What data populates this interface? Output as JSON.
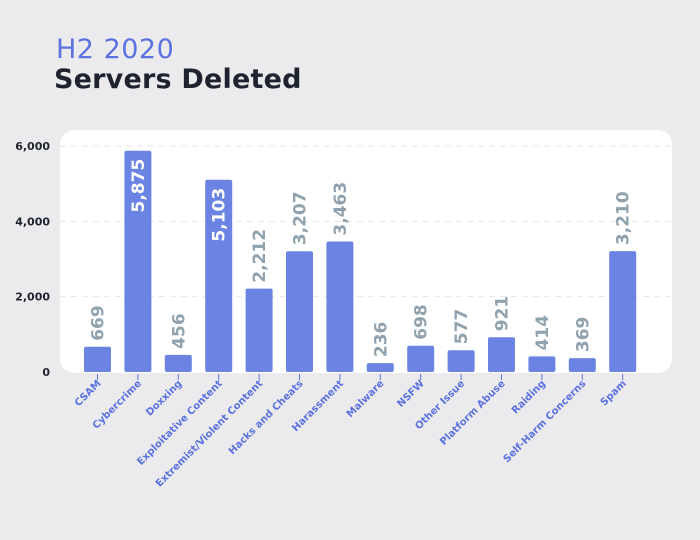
{
  "header": {
    "period": "H2 2020",
    "title": "Servers Deleted"
  },
  "colors": {
    "bar": "#6b84e3",
    "value_label_outside": "#8fa2ad",
    "value_label_inside": "#ffffff",
    "category_label": "#5b72e0",
    "tick_label": "#1f2330",
    "grid": "#e4e6ea"
  },
  "chart_data": {
    "type": "bar",
    "title": "Servers Deleted",
    "subtitle": "H2 2020",
    "xlabel": "",
    "ylabel": "",
    "ylim": [
      0,
      6000
    ],
    "yticks": [
      0,
      2000,
      4000,
      6000
    ],
    "ytick_labels": [
      "0",
      "2,000",
      "4,000",
      "6,000"
    ],
    "grid": true,
    "categories": [
      "CSAM",
      "Cybercrime",
      "Doxxing",
      "Exploitative Content",
      "Extremist/Violent Content",
      "Hacks and Cheats",
      "Harassment",
      "Malware",
      "NSFW",
      "Other Issue",
      "Platform Abuse",
      "Raiding",
      "Self-Harm Concerns",
      "Spam"
    ],
    "values": [
      669,
      5875,
      456,
      5103,
      2212,
      3207,
      3463,
      236,
      698,
      577,
      921,
      414,
      369,
      3210
    ],
    "value_labels": [
      "669",
      "5,875",
      "456",
      "5,103",
      "2,212",
      "3,207",
      "3,463",
      "236",
      "698",
      "577",
      "921",
      "414",
      "369",
      "3,210"
    ],
    "labels_inside": [
      false,
      true,
      false,
      true,
      false,
      false,
      false,
      false,
      false,
      false,
      false,
      false,
      false,
      false
    ]
  }
}
